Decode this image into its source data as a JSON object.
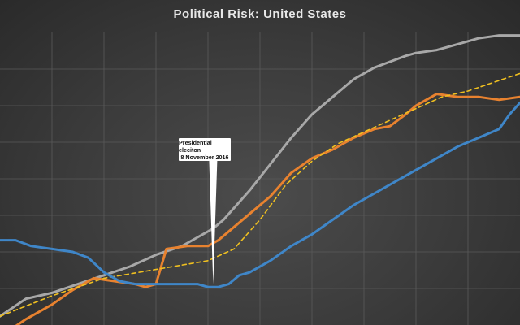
{
  "chart_data": {
    "type": "line",
    "title": "Political Risk: United States",
    "xlabel": "",
    "ylabel": "",
    "xlim": [
      0,
      100
    ],
    "ylim": [
      0,
      100
    ],
    "grid": true,
    "legend": "none",
    "series": [
      {
        "color": "#a8a8a8",
        "style": "solid",
        "x": [
          0,
          5,
          10,
          15,
          20,
          25,
          30,
          35,
          38,
          41,
          43,
          45,
          48,
          52,
          56,
          60,
          64,
          68,
          72,
          75,
          78,
          80,
          84,
          88,
          92,
          96,
          100
        ],
        "y": [
          3,
          9,
          11,
          14,
          17,
          20,
          24,
          27,
          30,
          33,
          36,
          40,
          46,
          55,
          64,
          72,
          78,
          84,
          88,
          90,
          92,
          93,
          94,
          96,
          98,
          99,
          99
        ]
      },
      {
        "color": "#e8822f",
        "style": "solid",
        "x": [
          0,
          5,
          10,
          14,
          18,
          22,
          26,
          28,
          30,
          32,
          36,
          40,
          42,
          44,
          48,
          52,
          56,
          60,
          64,
          68,
          72,
          75,
          78,
          80,
          84,
          88,
          92,
          96,
          100
        ],
        "y": [
          -4,
          2,
          7,
          12,
          16,
          15,
          14,
          13,
          14,
          26,
          27,
          27,
          29,
          32,
          38,
          44,
          52,
          57,
          60,
          64,
          67,
          68,
          72,
          75,
          79,
          78,
          78,
          77,
          78
        ]
      },
      {
        "color": "#f0c020",
        "style": "dashed",
        "x": [
          0,
          10,
          20,
          30,
          40,
          45,
          50,
          55,
          60,
          65,
          70,
          75,
          80,
          85,
          90,
          95,
          100
        ],
        "y": [
          3,
          10,
          16,
          19,
          22,
          26,
          36,
          48,
          56,
          62,
          66,
          70,
          74,
          78,
          80,
          83,
          86
        ]
      },
      {
        "color": "#3f86c8",
        "style": "solid",
        "x": [
          0,
          3,
          6,
          10,
          14,
          17,
          20,
          23,
          26,
          30,
          34,
          38,
          40,
          42,
          44,
          46,
          48,
          52,
          56,
          60,
          64,
          68,
          72,
          76,
          80,
          84,
          88,
          92,
          96,
          98,
          100
        ],
        "y": [
          29,
          29,
          27,
          26,
          25,
          23,
          18,
          15,
          14,
          14,
          14,
          14,
          13,
          13,
          14,
          17,
          18,
          22,
          27,
          31,
          36,
          41,
          45,
          49,
          53,
          57,
          61,
          64,
          67,
          72,
          76
        ]
      }
    ],
    "annotations": [
      {
        "x": 41,
        "y": 14,
        "line1": "Presidential eleciton",
        "line2": "8 November 2016"
      }
    ]
  }
}
